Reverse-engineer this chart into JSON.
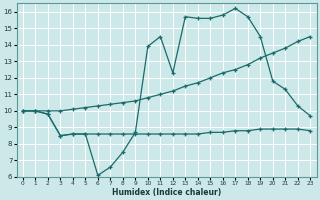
{
  "xlabel": "Humidex (Indice chaleur)",
  "bg_color": "#cce8e8",
  "grid_color": "#b8d8d8",
  "line_color": "#1a6b6b",
  "xlim": [
    -0.5,
    23.5
  ],
  "ylim": [
    6,
    16.5
  ],
  "xticks": [
    0,
    1,
    2,
    3,
    4,
    5,
    6,
    7,
    8,
    9,
    10,
    11,
    12,
    13,
    14,
    15,
    16,
    17,
    18,
    19,
    20,
    21,
    22,
    23
  ],
  "yticks": [
    6,
    7,
    8,
    9,
    10,
    11,
    12,
    13,
    14,
    15,
    16
  ],
  "curve1_x": [
    0,
    1,
    2,
    3,
    4,
    5,
    6,
    7,
    8,
    9,
    10,
    11,
    12,
    13,
    14,
    15,
    16,
    17,
    18,
    19,
    20,
    21,
    22,
    23
  ],
  "curve1_y": [
    10.0,
    10.0,
    9.8,
    8.5,
    8.6,
    8.6,
    6.1,
    6.6,
    7.5,
    8.7,
    13.9,
    14.5,
    12.3,
    15.7,
    15.6,
    15.6,
    15.8,
    16.2,
    15.7,
    14.5,
    11.8,
    11.3,
    10.3,
    9.7
  ],
  "curve2_x": [
    0,
    1,
    2,
    3,
    4,
    5,
    6,
    7,
    8,
    9,
    10,
    11,
    12,
    13,
    14,
    15,
    16,
    17,
    18,
    19,
    20,
    21,
    22,
    23
  ],
  "curve2_y": [
    10.0,
    10.0,
    10.0,
    10.0,
    10.1,
    10.2,
    10.3,
    10.4,
    10.5,
    10.6,
    10.8,
    11.0,
    11.2,
    11.5,
    11.7,
    12.0,
    12.3,
    12.5,
    12.8,
    13.2,
    13.5,
    13.8,
    14.2,
    14.5
  ],
  "curve3_x": [
    0,
    1,
    2,
    3,
    4,
    5,
    6,
    7,
    8,
    9,
    10,
    11,
    12,
    13,
    14,
    15,
    16,
    17,
    18,
    19,
    20,
    21,
    22,
    23
  ],
  "curve3_y": [
    10.0,
    10.0,
    9.8,
    8.5,
    8.6,
    8.6,
    8.6,
    8.6,
    8.6,
    8.6,
    8.6,
    8.6,
    8.6,
    8.6,
    8.6,
    8.7,
    8.7,
    8.8,
    8.8,
    8.9,
    8.9,
    8.9,
    8.9,
    8.8
  ]
}
